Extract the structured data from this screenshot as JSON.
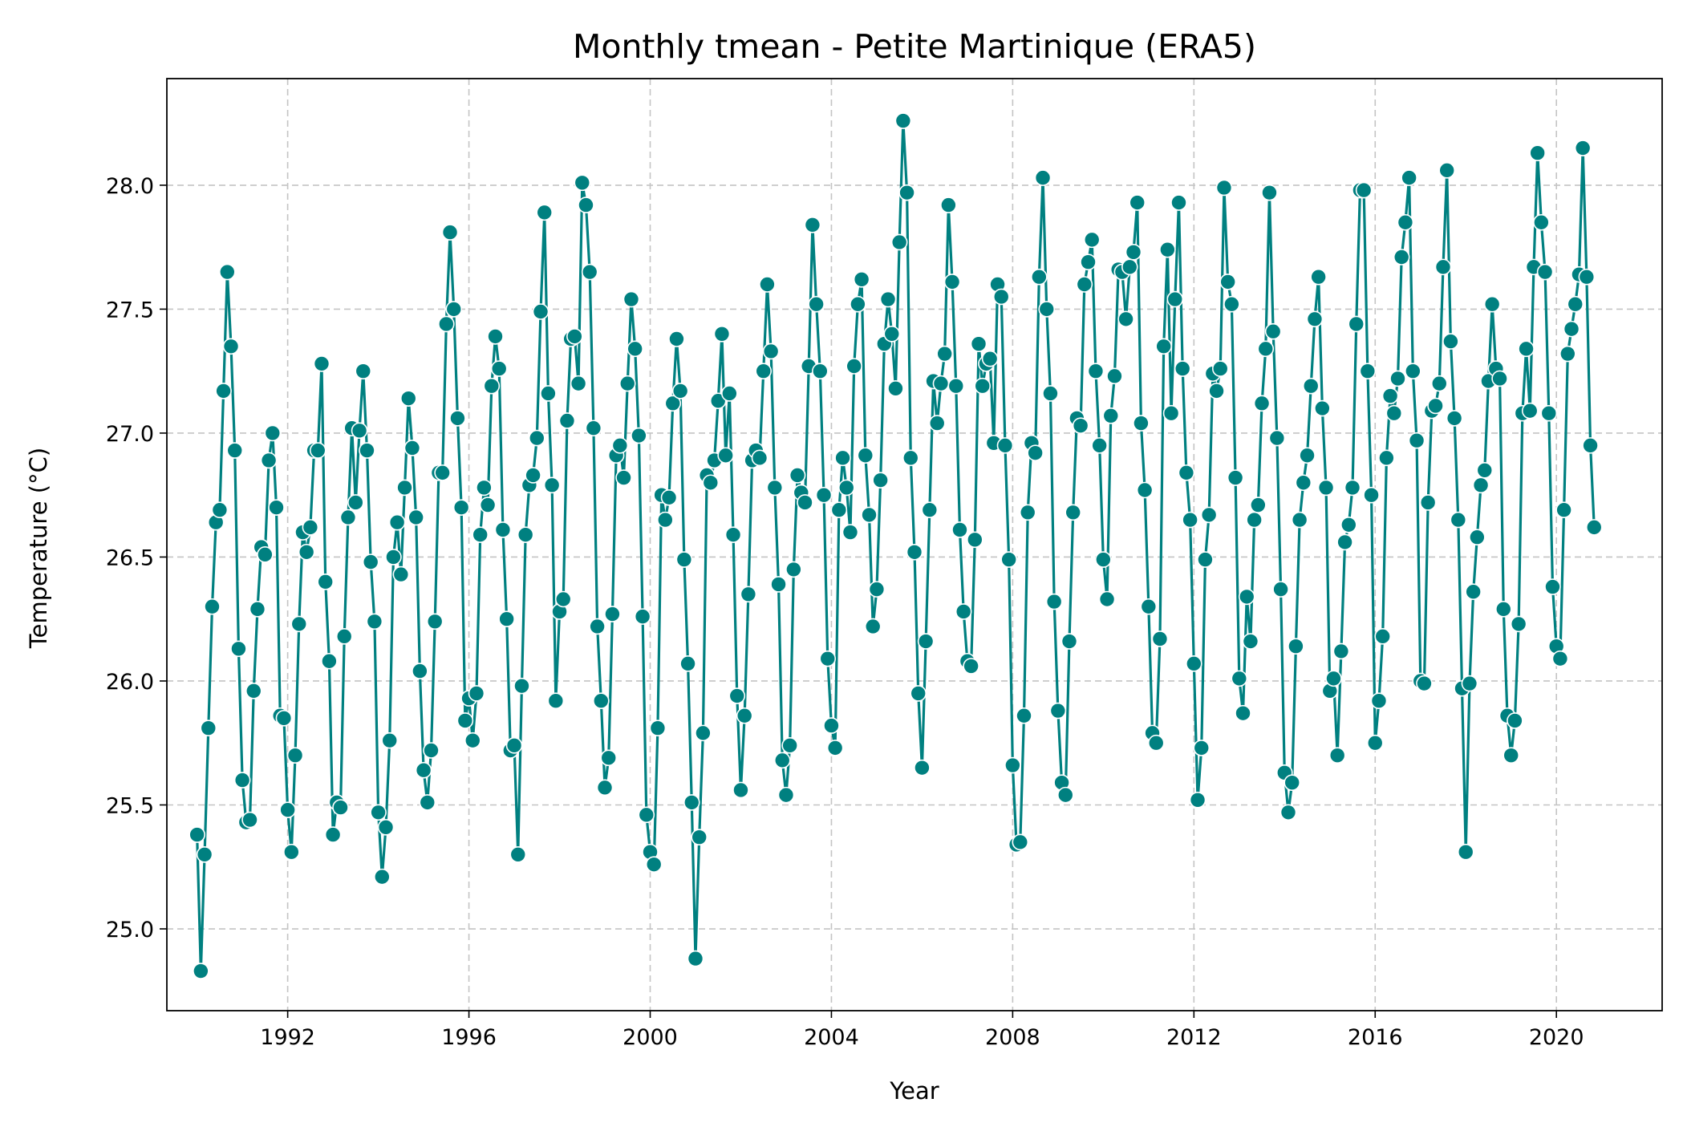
{
  "chart_data": {
    "type": "line",
    "title": "Monthly tmean - Petite Martinique (ERA5)",
    "xlabel": "Year",
    "ylabel": "Temperature (°C)",
    "x_ticks": [
      "1992",
      "1996",
      "2000",
      "2004",
      "2008",
      "2012",
      "2016",
      "2020"
    ],
    "y_ticks": [
      "25.0",
      "25.5",
      "26.0",
      "26.5",
      "27.0",
      "27.5",
      "28.0"
    ],
    "xlim": [
      "1989-05-01",
      "2022-05-01"
    ],
    "ylim": [
      24.67,
      28.43
    ],
    "grid": true,
    "legend": "none",
    "color": "#008080",
    "start": "1990-01",
    "frequency": "monthly",
    "series": [
      {
        "values": [
          25.38,
          24.83,
          25.3,
          25.81,
          26.3,
          26.64,
          26.69,
          27.17,
          27.65,
          27.35,
          26.93,
          26.13,
          25.6,
          25.43,
          25.44,
          25.96,
          26.29,
          26.54,
          26.51,
          26.89,
          27.0,
          26.7,
          25.86,
          25.85,
          25.48,
          25.31,
          25.7,
          26.23,
          26.6,
          26.52,
          26.62,
          26.93,
          26.93,
          27.28,
          26.4,
          26.08,
          25.38,
          25.51,
          25.49,
          26.18,
          26.66,
          27.02,
          26.72,
          27.01,
          27.25,
          26.93,
          26.48,
          26.24,
          25.47,
          25.21,
          25.41,
          25.76,
          26.5,
          26.64,
          26.43,
          26.78,
          27.14,
          26.94,
          26.66,
          26.04,
          25.64,
          25.51,
          25.72,
          26.24,
          26.84,
          26.84,
          27.44,
          27.81,
          27.5,
          27.06,
          26.7,
          25.84,
          25.93,
          25.76,
          25.95,
          26.59,
          26.78,
          26.71,
          27.19,
          27.39,
          27.26,
          26.61,
          26.25,
          25.72,
          25.74,
          25.3,
          25.98,
          26.59,
          26.79,
          26.83,
          26.98,
          27.49,
          27.89,
          27.16,
          26.79,
          25.92,
          26.28,
          26.33,
          27.05,
          27.38,
          27.39,
          27.2,
          28.01,
          27.92,
          27.65,
          27.02,
          26.22,
          25.92,
          25.57,
          25.69,
          26.27,
          26.91,
          26.95,
          26.82,
          27.2,
          27.54,
          27.34,
          26.99,
          26.26,
          25.46,
          25.31,
          25.26,
          25.81,
          26.75,
          26.65,
          26.74,
          27.12,
          27.38,
          27.17,
          26.49,
          26.07,
          25.51,
          24.88,
          25.37,
          25.79,
          26.83,
          26.8,
          26.89,
          27.13,
          27.4,
          26.91,
          27.16,
          26.59,
          25.94,
          25.56,
          25.86,
          26.35,
          26.89,
          26.93,
          26.9,
          27.25,
          27.6,
          27.33,
          26.78,
          26.39,
          25.68,
          25.54,
          25.74,
          26.45,
          26.83,
          26.76,
          26.72,
          27.27,
          27.84,
          27.52,
          27.25,
          26.75,
          26.09,
          25.82,
          25.73,
          26.69,
          26.9,
          26.78,
          26.6,
          27.27,
          27.52,
          27.62,
          26.91,
          26.67,
          26.22,
          26.37,
          26.81,
          27.36,
          27.54,
          27.4,
          27.18,
          27.77,
          28.26,
          27.97,
          26.9,
          26.52,
          25.95,
          25.65,
          26.16,
          26.69,
          27.21,
          27.04,
          27.2,
          27.32,
          27.92,
          27.61,
          27.19,
          26.61,
          26.28,
          26.08,
          26.06,
          26.57,
          27.36,
          27.19,
          27.28,
          27.3,
          26.96,
          27.6,
          27.55,
          26.95,
          26.49,
          25.66,
          25.34,
          25.35,
          25.86,
          26.68,
          26.96,
          26.92,
          27.63,
          28.03,
          27.5,
          27.16,
          26.32,
          25.88,
          25.59,
          25.54,
          26.16,
          26.68,
          27.06,
          27.03,
          27.6,
          27.69,
          27.78,
          27.25,
          26.95,
          26.49,
          26.33,
          27.07,
          27.23,
          27.66,
          27.65,
          27.46,
          27.67,
          27.73,
          27.93,
          27.04,
          26.77,
          26.3,
          25.79,
          25.75,
          26.17,
          27.35,
          27.74,
          27.08,
          27.54,
          27.93,
          27.26,
          26.84,
          26.65,
          26.07,
          25.52,
          25.73,
          26.49,
          26.67,
          27.24,
          27.17,
          27.26,
          27.99,
          27.61,
          27.52,
          26.82,
          26.01,
          25.87,
          26.34,
          26.16,
          26.65,
          26.71,
          27.12,
          27.34,
          27.97,
          27.41,
          26.98,
          26.37,
          25.63,
          25.47,
          25.59,
          26.14,
          26.65,
          26.8,
          26.91,
          27.19,
          27.46,
          27.63,
          27.1,
          26.78,
          25.96,
          26.01,
          25.7,
          26.12,
          26.56,
          26.63,
          26.78,
          27.44,
          27.98,
          27.98,
          27.25,
          26.75,
          25.75,
          25.92,
          26.18,
          26.9,
          27.15,
          27.08,
          27.22,
          27.71,
          27.85,
          28.03,
          27.25,
          26.97,
          26.0,
          25.99,
          26.72,
          27.09,
          27.11,
          27.2,
          27.67,
          28.06,
          27.37,
          27.06,
          26.65,
          25.97,
          25.31,
          25.99,
          26.36,
          26.58,
          26.79,
          26.85,
          27.21,
          27.52,
          27.26,
          27.22,
          26.29,
          25.86,
          25.7,
          25.84,
          26.23,
          27.08,
          27.34,
          27.09,
          27.67,
          28.13,
          27.85,
          27.65,
          27.08,
          26.38,
          26.14,
          26.09,
          26.69,
          27.32,
          27.42,
          27.52,
          27.64,
          28.15,
          27.63,
          26.95,
          26.62
        ]
      }
    ]
  }
}
